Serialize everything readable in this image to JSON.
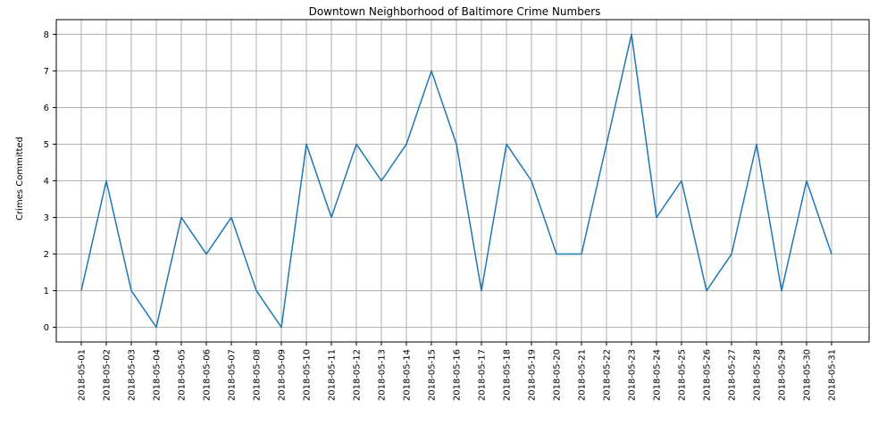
{
  "chart_data": {
    "type": "line",
    "title": "Downtown Neighborhood of Baltimore Crime Numbers",
    "xlabel": "",
    "ylabel": "Crimes Committed",
    "x": [
      "2018-05-01",
      "2018-05-02",
      "2018-05-03",
      "2018-05-04",
      "2018-05-05",
      "2018-05-06",
      "2018-05-07",
      "2018-05-08",
      "2018-05-09",
      "2018-05-10",
      "2018-05-11",
      "2018-05-12",
      "2018-05-13",
      "2018-05-14",
      "2018-05-15",
      "2018-05-16",
      "2018-05-17",
      "2018-05-18",
      "2018-05-19",
      "2018-05-20",
      "2018-05-21",
      "2018-05-22",
      "2018-05-23",
      "2018-05-24",
      "2018-05-25",
      "2018-05-26",
      "2018-05-27",
      "2018-05-28",
      "2018-05-29",
      "2018-05-30",
      "2018-05-31"
    ],
    "series": [
      {
        "values": [
          1,
          4,
          1,
          0,
          3,
          2,
          3,
          1,
          0,
          5,
          3,
          5,
          4,
          5,
          7,
          5,
          1,
          5,
          4,
          2,
          2,
          5,
          8,
          3,
          4,
          1,
          2,
          5,
          1,
          4,
          2
        ],
        "color": "#1f77b4"
      }
    ],
    "ylim": [
      -0.4,
      8.4
    ],
    "yticks": [
      0,
      1,
      2,
      3,
      4,
      5,
      6,
      7,
      8
    ],
    "grid": true,
    "legend": "none"
  }
}
